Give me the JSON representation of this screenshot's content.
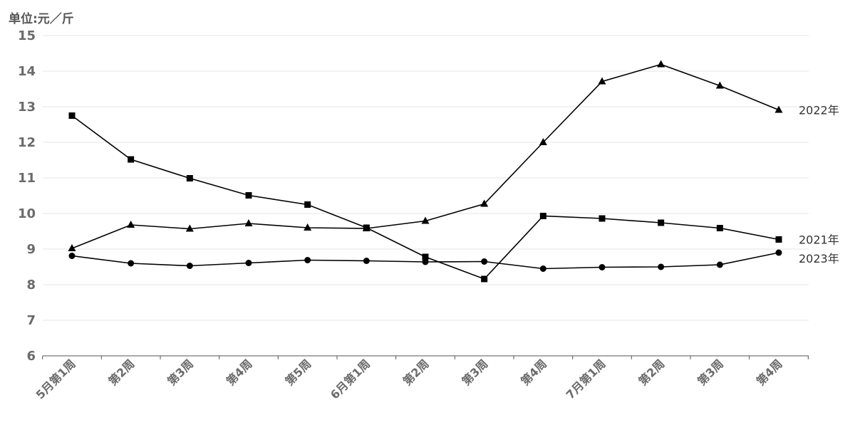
{
  "chart_data": {
    "type": "line",
    "title": "",
    "ylabel": "单位:元／斤",
    "xlabel": "",
    "ylim": [
      6,
      15
    ],
    "yticks": [
      6,
      7,
      8,
      9,
      10,
      11,
      12,
      13,
      14,
      15
    ],
    "grid": true,
    "legend": "inline-right",
    "categories": [
      "5月第1周",
      "第2周",
      "第3周",
      "第4周",
      "第5周",
      "6月第1周",
      "第2周",
      "第3周",
      "第4周",
      "7月第1周",
      "第2周",
      "第3周",
      "第4周"
    ],
    "series": [
      {
        "name": "2022年",
        "marker": "triangle",
        "color": "#000000",
        "values": [
          9.02,
          9.68,
          9.57,
          9.72,
          9.6,
          9.58,
          9.79,
          10.27,
          12.0,
          13.71,
          14.19,
          13.59,
          12.91
        ]
      },
      {
        "name": "2021年",
        "marker": "square",
        "color": "#000000",
        "values": [
          12.75,
          11.52,
          10.99,
          10.51,
          10.25,
          9.6,
          8.78,
          8.16,
          9.93,
          9.86,
          9.74,
          9.59,
          9.27
        ]
      },
      {
        "name": "2023年",
        "marker": "circle",
        "color": "#000000",
        "values": [
          8.81,
          8.6,
          8.53,
          8.61,
          8.69,
          8.67,
          8.64,
          8.65,
          8.45,
          8.49,
          8.5,
          8.56,
          8.9
        ]
      }
    ]
  }
}
